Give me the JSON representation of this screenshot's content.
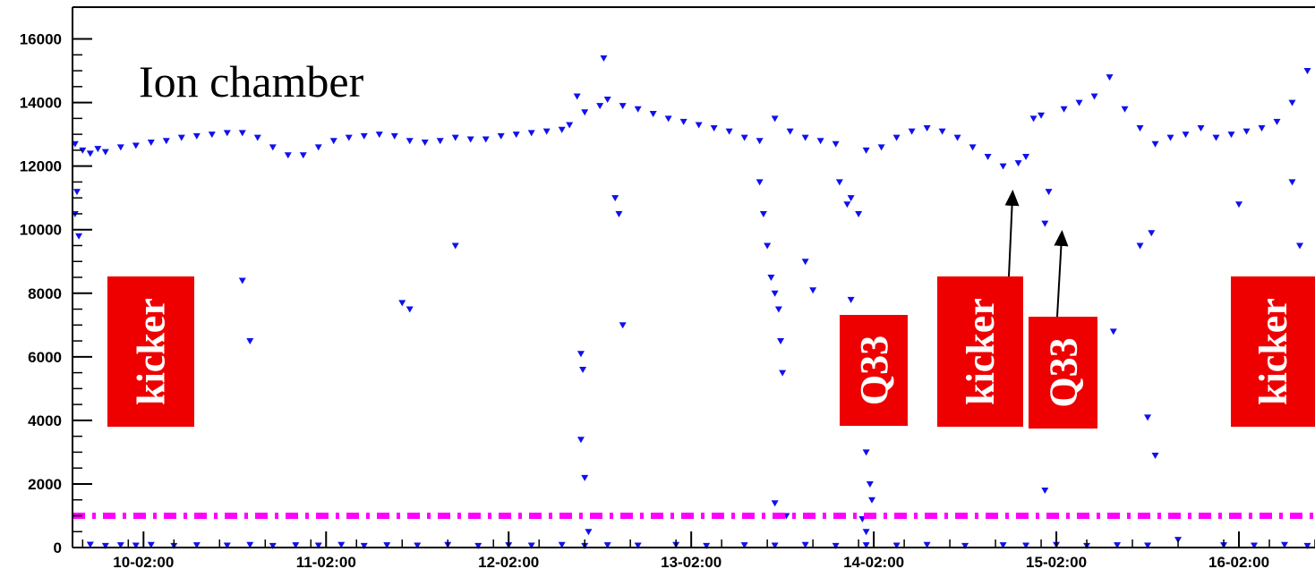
{
  "chart_data": {
    "type": "scatter",
    "title": "Ion chamber",
    "xlabel": "",
    "ylabel": "",
    "ylim": [
      0,
      17000
    ],
    "xlim": [
      "09-16:40",
      "16-12:00"
    ],
    "yticks": [
      0,
      2000,
      4000,
      6000,
      8000,
      10000,
      12000,
      14000,
      16000
    ],
    "xtick_labels": [
      "10-02:00",
      "11-02:00",
      "12-02:00",
      "13-02:00",
      "14-02:00",
      "15-02:00",
      "16-02:00"
    ],
    "grid": false,
    "marker": "triangle-down",
    "series": [
      {
        "color": "#1010ee",
        "points": [
          [
            "09-17:00",
            12700
          ],
          [
            "09-18:00",
            12500
          ],
          [
            "09-19:00",
            12400
          ],
          [
            "09-20:00",
            12550
          ],
          [
            "09-21:00",
            12450
          ],
          [
            "09-23:00",
            12600
          ],
          [
            "10-01:00",
            12650
          ],
          [
            "10-03:00",
            12750
          ],
          [
            "10-05:00",
            12800
          ],
          [
            "10-07:00",
            12900
          ],
          [
            "10-09:00",
            12950
          ],
          [
            "10-11:00",
            13000
          ],
          [
            "10-13:00",
            13050
          ],
          [
            "10-15:00",
            13050
          ],
          [
            "10-17:00",
            12900
          ],
          [
            "10-19:00",
            12600
          ],
          [
            "10-21:00",
            12350
          ],
          [
            "10-23:00",
            12350
          ],
          [
            "11-01:00",
            12600
          ],
          [
            "11-03:00",
            12800
          ],
          [
            "11-05:00",
            12900
          ],
          [
            "11-07:00",
            12950
          ],
          [
            "11-09:00",
            13000
          ],
          [
            "11-11:00",
            12950
          ],
          [
            "11-13:00",
            12800
          ],
          [
            "11-15:00",
            12750
          ],
          [
            "11-17:00",
            12800
          ],
          [
            "11-19:00",
            12900
          ],
          [
            "11-21:00",
            12850
          ],
          [
            "11-23:00",
            12850
          ],
          [
            "12-01:00",
            12950
          ],
          [
            "12-03:00",
            13000
          ],
          [
            "12-05:00",
            13050
          ],
          [
            "12-07:00",
            13100
          ],
          [
            "12-09:00",
            13150
          ],
          [
            "12-10:00",
            13300
          ],
          [
            "12-11:00",
            14200
          ],
          [
            "12-12:00",
            13700
          ],
          [
            "12-14:00",
            13900
          ],
          [
            "12-15:00",
            14100
          ],
          [
            "12-17:00",
            13900
          ],
          [
            "12-19:00",
            13800
          ],
          [
            "12-21:00",
            13650
          ],
          [
            "12-23:00",
            13500
          ],
          [
            "13-01:00",
            13400
          ],
          [
            "13-03:00",
            13300
          ],
          [
            "13-05:00",
            13200
          ],
          [
            "13-07:00",
            13100
          ],
          [
            "13-09:00",
            12900
          ],
          [
            "13-11:00",
            12800
          ],
          [
            "13-13:00",
            13500
          ],
          [
            "13-15:00",
            13100
          ],
          [
            "13-17:00",
            12900
          ],
          [
            "13-19:00",
            12800
          ],
          [
            "13-21:00",
            12700
          ],
          [
            "13-23:00",
            11000
          ],
          [
            "14-00:00",
            10500
          ],
          [
            "14-01:00",
            12500
          ],
          [
            "14-03:00",
            12600
          ],
          [
            "14-05:00",
            12900
          ],
          [
            "14-07:00",
            13100
          ],
          [
            "14-09:00",
            13200
          ],
          [
            "14-11:00",
            13100
          ],
          [
            "14-13:00",
            12900
          ],
          [
            "14-15:00",
            12600
          ],
          [
            "14-17:00",
            12300
          ],
          [
            "14-19:00",
            12000
          ],
          [
            "14-21:00",
            12100
          ],
          [
            "14-22:00",
            12300
          ],
          [
            "14-23:00",
            13500
          ],
          [
            "15-00:00",
            13600
          ],
          [
            "15-01:00",
            11200
          ],
          [
            "15-03:00",
            13800
          ],
          [
            "15-05:00",
            14000
          ],
          [
            "15-07:00",
            14200
          ],
          [
            "15-09:00",
            14800
          ],
          [
            "15-11:00",
            13800
          ],
          [
            "15-13:00",
            13200
          ],
          [
            "15-15:00",
            12700
          ],
          [
            "15-17:00",
            12900
          ],
          [
            "15-19:00",
            13000
          ],
          [
            "15-21:00",
            13200
          ],
          [
            "15-23:00",
            12900
          ],
          [
            "16-01:00",
            13000
          ],
          [
            "16-03:00",
            13100
          ],
          [
            "16-05:00",
            13200
          ],
          [
            "16-07:00",
            13400
          ],
          [
            "16-09:00",
            14000
          ],
          [
            "16-11:00",
            15000
          ],
          [
            "09-17:00",
            10500
          ],
          [
            "09-17:30",
            9800
          ],
          [
            "09-17:15",
            11200
          ],
          [
            "12-11:30",
            6100
          ],
          [
            "12-11:45",
            5600
          ],
          [
            "12-11:30",
            3400
          ],
          [
            "12-12:00",
            2200
          ],
          [
            "12-12:30",
            500
          ],
          [
            "12-16:00",
            11000
          ],
          [
            "12-16:30",
            10500
          ],
          [
            "12-17:00",
            7000
          ],
          [
            "12-14:30",
            15400
          ],
          [
            "13-11:00",
            11500
          ],
          [
            "13-11:30",
            10500
          ],
          [
            "13-12:00",
            9500
          ],
          [
            "13-12:30",
            8500
          ],
          [
            "13-13:00",
            8000
          ],
          [
            "13-13:30",
            7500
          ],
          [
            "13-13:45",
            6500
          ],
          [
            "13-14:00",
            5500
          ],
          [
            "13-13:00",
            1400
          ],
          [
            "13-14:30",
            1000
          ],
          [
            "13-17:00",
            9000
          ],
          [
            "13-18:00",
            8100
          ],
          [
            "13-21:30",
            11500
          ],
          [
            "13-22:30",
            10800
          ],
          [
            "13-23:00",
            7800
          ],
          [
            "14-01:00",
            3000
          ],
          [
            "14-01:30",
            2000
          ],
          [
            "14-01:45",
            1500
          ],
          [
            "14-00:30",
            900
          ],
          [
            "14-01:00",
            500
          ],
          [
            "15-00:30",
            1800
          ],
          [
            "15-00:30",
            10200
          ],
          [
            "15-09:30",
            6800
          ],
          [
            "15-13:00",
            9500
          ],
          [
            "15-14:00",
            4100
          ],
          [
            "15-15:00",
            2900
          ],
          [
            "15-14:30",
            9900
          ],
          [
            "16-02:00",
            10800
          ],
          [
            "16-09:00",
            11500
          ],
          [
            "16-10:00",
            9500
          ],
          [
            "10-15:00",
            8400
          ],
          [
            "10-16:00",
            6500
          ],
          [
            "11-12:00",
            7700
          ],
          [
            "11-13:00",
            7500
          ],
          [
            "11-19:00",
            9500
          ],
          [
            "09-19:00",
            100
          ],
          [
            "09-21:00",
            60
          ],
          [
            "09-23:00",
            80
          ],
          [
            "10-01:00",
            70
          ],
          [
            "10-03:00",
            90
          ],
          [
            "10-06:00",
            60
          ],
          [
            "10-09:00",
            80
          ],
          [
            "10-13:00",
            70
          ],
          [
            "10-16:00",
            90
          ],
          [
            "10-19:00",
            60
          ],
          [
            "10-22:00",
            80
          ],
          [
            "11-01:00",
            70
          ],
          [
            "11-04:00",
            90
          ],
          [
            "11-07:00",
            60
          ],
          [
            "11-10:00",
            80
          ],
          [
            "11-14:00",
            70
          ],
          [
            "11-18:00",
            90
          ],
          [
            "11-22:00",
            60
          ],
          [
            "12-02:00",
            80
          ],
          [
            "12-05:00",
            70
          ],
          [
            "12-09:00",
            90
          ],
          [
            "12-12:00",
            60
          ],
          [
            "12-15:00",
            80
          ],
          [
            "12-19:00",
            70
          ],
          [
            "13-00:00",
            90
          ],
          [
            "13-04:00",
            60
          ],
          [
            "13-09:00",
            80
          ],
          [
            "13-13:00",
            70
          ],
          [
            "13-17:00",
            90
          ],
          [
            "13-21:00",
            60
          ],
          [
            "14-01:00",
            80
          ],
          [
            "14-05:00",
            70
          ],
          [
            "14-09:00",
            90
          ],
          [
            "14-14:00",
            60
          ],
          [
            "14-19:00",
            80
          ],
          [
            "14-22:00",
            70
          ],
          [
            "15-02:00",
            90
          ],
          [
            "15-06:00",
            60
          ],
          [
            "15-10:00",
            80
          ],
          [
            "15-14:00",
            70
          ],
          [
            "15-18:00",
            250
          ],
          [
            "16-00:00",
            80
          ],
          [
            "16-04:00",
            70
          ],
          [
            "16-08:00",
            90
          ],
          [
            "16-11:00",
            60
          ]
        ]
      }
    ],
    "threshold": {
      "y": 1000,
      "color": "#ff00ff",
      "style": "dash-dot"
    },
    "annotations": [
      {
        "text": "kicker"
      },
      {
        "text": "Q33"
      },
      {
        "text": "kicker"
      },
      {
        "text": "Q33"
      },
      {
        "text": "kicker"
      }
    ]
  }
}
